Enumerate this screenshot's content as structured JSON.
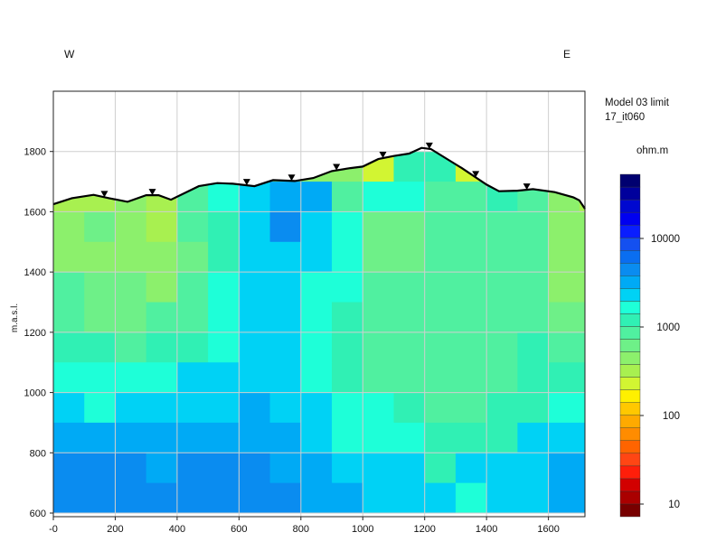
{
  "chart_data": {
    "type": "heatmap",
    "direction_left": "W",
    "direction_right": "E",
    "legend_title_line1": "Model 03 limit",
    "legend_title_line2": "17_it060",
    "colorbar_unit": "ohm.m",
    "colorbar_scale": "log",
    "colorbar_range": [
      7.2,
      53000
    ],
    "colorbar_ticks": [
      {
        "value": 10,
        "label": "10"
      },
      {
        "value": 100,
        "label": "100"
      },
      {
        "value": 1000,
        "label": "1000"
      },
      {
        "value": 10000,
        "label": "10000"
      }
    ],
    "colorscale": [
      "#780000",
      "#aa0000",
      "#d20000",
      "#ff1e0a",
      "#ff4614",
      "#ff6400",
      "#ff8c00",
      "#ffaa00",
      "#ffc800",
      "#fff000",
      "#d2f532",
      "#a8f050",
      "#8cf06c",
      "#6ef088",
      "#50f0a0",
      "#30f0b4",
      "#1effd8",
      "#00d2f5",
      "#00aaf5",
      "#0a8cf0",
      "#0a6ef0",
      "#1450f0",
      "#0a1eff",
      "#0000f0",
      "#0008d0",
      "#00009c",
      "#000070"
    ],
    "xlabel": "",
    "ylabel": "m.a.s.l.",
    "xlim": [
      0,
      1718
    ],
    "ylim": [
      588,
      2000
    ],
    "grid": true,
    "x_ticks": [
      {
        "value": 0,
        "label": "-0"
      },
      {
        "value": 200,
        "label": "200"
      },
      {
        "value": 400,
        "label": "400"
      },
      {
        "value": 600,
        "label": "600"
      },
      {
        "value": 800,
        "label": "800"
      },
      {
        "value": 1000,
        "label": "1000"
      },
      {
        "value": 1200,
        "label": "1200"
      },
      {
        "value": 1400,
        "label": "1400"
      },
      {
        "value": 1600,
        "label": "1600"
      }
    ],
    "y_ticks": [
      {
        "value": 600,
        "label": "600"
      },
      {
        "value": 800,
        "label": "800"
      },
      {
        "value": 1000,
        "label": "1000"
      },
      {
        "value": 1200,
        "label": "1200"
      },
      {
        "value": 1400,
        "label": "1400"
      },
      {
        "value": 1600,
        "label": "1600"
      },
      {
        "value": 1800,
        "label": "1800"
      }
    ],
    "cell_x_centers": [
      50,
      150,
      250,
      350,
      450,
      550,
      650,
      750,
      850,
      950,
      1050,
      1150,
      1250,
      1350,
      1450,
      1550,
      1650,
      1750
    ],
    "cell_y_centers": [
      1750,
      1650,
      1550,
      1450,
      1350,
      1250,
      1150,
      1050,
      950,
      850,
      750,
      650
    ],
    "cell_size": [
      100,
      100
    ],
    "resistivity": [
      [
        500,
        500,
        500,
        500,
        500,
        500,
        500,
        500,
        500,
        500,
        200,
        1300,
        1100,
        250,
        600,
        600,
        500,
        500
      ],
      [
        300,
        350,
        500,
        350,
        800,
        1500,
        2300,
        3200,
        3000,
        800,
        1500,
        1500,
        800,
        900,
        1100,
        900,
        400,
        350
      ],
      [
        450,
        550,
        500,
        350,
        800,
        1200,
        2300,
        5000,
        2300,
        1500,
        700,
        700,
        1000,
        1000,
        1000,
        900,
        400,
        400
      ],
      [
        500,
        500,
        450,
        400,
        600,
        1100,
        2300,
        2300,
        2300,
        1500,
        700,
        600,
        900,
        1000,
        900,
        800,
        450,
        450
      ],
      [
        800,
        550,
        550,
        500,
        800,
        1500,
        2300,
        2300,
        1600,
        1500,
        900,
        900,
        900,
        900,
        900,
        900,
        500,
        500
      ],
      [
        800,
        700,
        700,
        800,
        900,
        1500,
        2300,
        2300,
        1600,
        1400,
        900,
        900,
        900,
        900,
        900,
        900,
        600,
        600
      ],
      [
        1100,
        1100,
        900,
        1100,
        1100,
        1600,
        2300,
        2300,
        1600,
        1400,
        900,
        900,
        900,
        900,
        900,
        1100,
        900,
        900
      ],
      [
        1500,
        1500,
        1500,
        1500,
        2300,
        2300,
        2300,
        2300,
        1600,
        1400,
        900,
        900,
        900,
        900,
        900,
        1100,
        1400,
        1400
      ],
      [
        2300,
        1600,
        2300,
        2300,
        2300,
        2300,
        3200,
        2300,
        2300,
        1500,
        1500,
        1400,
        1000,
        1000,
        1400,
        1400,
        1500,
        1500
      ],
      [
        3200,
        3200,
        3200,
        3200,
        3200,
        3200,
        3200,
        3200,
        2300,
        1600,
        1500,
        1500,
        1100,
        1100,
        1400,
        2300,
        2300,
        2300
      ],
      [
        4400,
        4400,
        4400,
        3200,
        4400,
        4400,
        4400,
        3200,
        3200,
        2300,
        2300,
        2300,
        1400,
        2300,
        2300,
        2300,
        3200,
        3200
      ],
      [
        4400,
        4400,
        4400,
        4400,
        4400,
        4400,
        4400,
        4400,
        3200,
        3200,
        2300,
        2300,
        2300,
        1600,
        2300,
        2300,
        3200,
        3200
      ]
    ],
    "topography": [
      [
        0,
        1625
      ],
      [
        60,
        1645
      ],
      [
        130,
        1656
      ],
      [
        180,
        1645
      ],
      [
        240,
        1633
      ],
      [
        300,
        1655
      ],
      [
        340,
        1655
      ],
      [
        380,
        1640
      ],
      [
        470,
        1685
      ],
      [
        530,
        1695
      ],
      [
        580,
        1693
      ],
      [
        650,
        1685
      ],
      [
        710,
        1705
      ],
      [
        780,
        1702
      ],
      [
        840,
        1712
      ],
      [
        900,
        1735
      ],
      [
        960,
        1745
      ],
      [
        1000,
        1750
      ],
      [
        1050,
        1775
      ],
      [
        1100,
        1785
      ],
      [
        1150,
        1793
      ],
      [
        1190,
        1812
      ],
      [
        1220,
        1808
      ],
      [
        1320,
        1745
      ],
      [
        1400,
        1690
      ],
      [
        1440,
        1668
      ],
      [
        1500,
        1670
      ],
      [
        1550,
        1675
      ],
      [
        1620,
        1665
      ],
      [
        1680,
        1648
      ],
      [
        1700,
        1638
      ],
      [
        1718,
        1610
      ]
    ],
    "electrodes_x": [
      165,
      320,
      625,
      770,
      915,
      1065,
      1215,
      1365,
      1530
    ],
    "colors": {
      "surface_line": "#000000",
      "grid": "#cfcfcf",
      "frame": "#222222"
    }
  }
}
